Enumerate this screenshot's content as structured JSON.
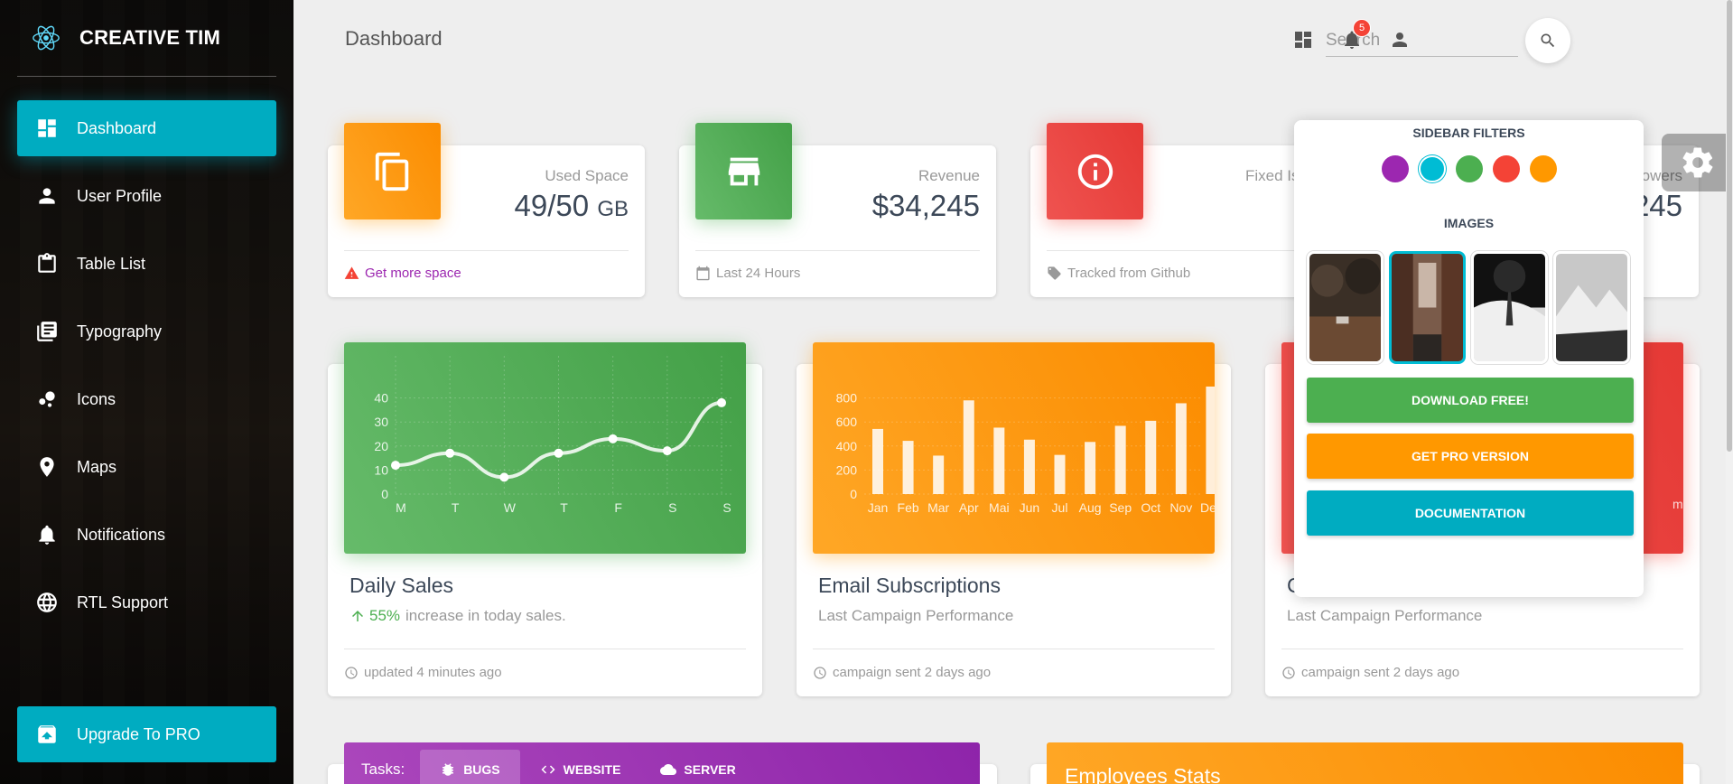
{
  "brand": {
    "name": "CREATIVE TIM"
  },
  "sidebar": {
    "items": [
      {
        "label": "Dashboard",
        "icon": "dashboard-icon",
        "active": true
      },
      {
        "label": "User Profile",
        "icon": "person-icon"
      },
      {
        "label": "Table List",
        "icon": "clipboard-icon"
      },
      {
        "label": "Typography",
        "icon": "library-books-icon"
      },
      {
        "label": "Icons",
        "icon": "bubble-chart-icon"
      },
      {
        "label": "Maps",
        "icon": "location-icon"
      },
      {
        "label": "Notifications",
        "icon": "bell-icon"
      },
      {
        "label": "RTL Support",
        "icon": "language-icon"
      }
    ],
    "upgrade_label": "Upgrade To PRO"
  },
  "header": {
    "title": "Dashboard",
    "search_placeholder": "Search",
    "notification_count": "5"
  },
  "stats": [
    {
      "category": "Used Space",
      "value": "49/50",
      "unit": "GB",
      "footer": "Get more space",
      "color": "#ff9800"
    },
    {
      "category": "Revenue",
      "value": "$34,245",
      "footer": "Last 24 Hours",
      "color": "#4caf50"
    },
    {
      "category": "Fixed Is",
      "value": "",
      "footer": "Tracked from Github",
      "color": "#f44336"
    },
    {
      "category": "owers",
      "value": "245",
      "footer": "",
      "color": "#00acc1"
    }
  ],
  "charts": {
    "daily": {
      "title": "Daily Sales",
      "increase": "55%",
      "sub": "increase in today sales.",
      "footer": "updated 4 minutes ago"
    },
    "email": {
      "title": "Email Subscriptions",
      "sub": "Last Campaign Performance",
      "footer": "campaign sent 2 days ago"
    },
    "completed": {
      "title": "C",
      "sub": "Last Campaign Performance",
      "footer": "campaign sent 2 days ago",
      "tick_fragment": "m"
    }
  },
  "chart_data": [
    {
      "type": "line",
      "categories": [
        "M",
        "T",
        "W",
        "T",
        "F",
        "S",
        "S"
      ],
      "values": [
        12,
        17,
        7,
        17,
        23,
        18,
        38
      ],
      "yticks": [
        "0",
        "10",
        "20",
        "30",
        "40"
      ],
      "ylim": [
        0,
        50
      ]
    },
    {
      "type": "bar",
      "categories": [
        "Jan",
        "Feb",
        "Mar",
        "Apr",
        "Mai",
        "Jun",
        "Jul",
        "Aug",
        "Sep",
        "Oct",
        "Nov",
        "Dec"
      ],
      "values": [
        542,
        443,
        320,
        780,
        553,
        453,
        326,
        434,
        568,
        610,
        756,
        895
      ],
      "yticks": [
        "0",
        "200",
        "400",
        "600",
        "800"
      ],
      "ylim": [
        0,
        1000
      ]
    }
  ],
  "tasks": {
    "label": "Tasks:",
    "tabs": [
      {
        "label": "BUGS",
        "icon": "bug-icon"
      },
      {
        "label": "WEBSITE",
        "icon": "code-icon"
      },
      {
        "label": "SERVER",
        "icon": "cloud-icon"
      }
    ]
  },
  "employees": {
    "title": "Employees Stats"
  },
  "plugin": {
    "filters_title": "SIDEBAR FILTERS",
    "images_title": "IMAGES",
    "colors": [
      "#9c27b0",
      "#00bcd4",
      "#4caf50",
      "#f44336",
      "#ff9800"
    ],
    "buttons": [
      {
        "label": "DOWNLOAD FREE!",
        "color": "#4caf50"
      },
      {
        "label": "GET PRO VERSION",
        "color": "#ff9800"
      },
      {
        "label": "DOCUMENTATION",
        "color": "#00acc1"
      }
    ]
  }
}
